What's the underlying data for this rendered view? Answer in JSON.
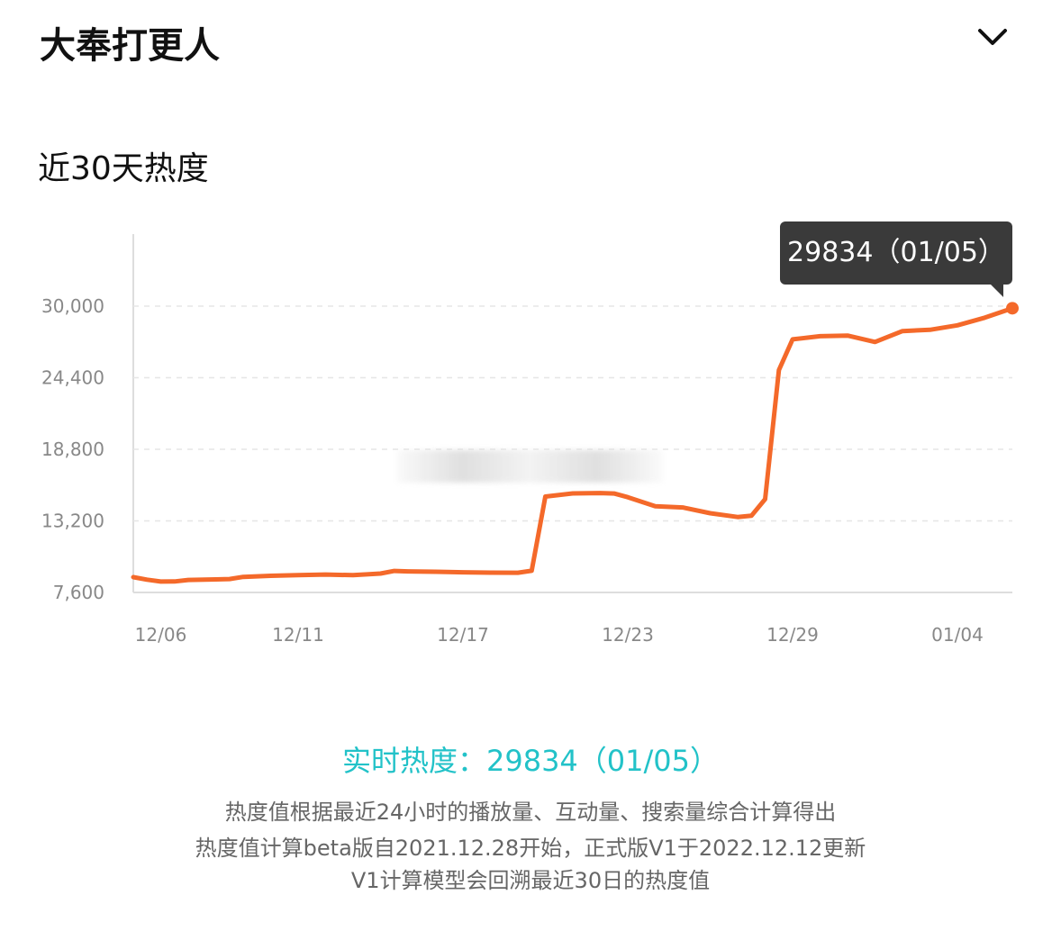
{
  "header": {
    "title": "大奉打更人",
    "toggle_icon": "chevron-down-icon"
  },
  "section": {
    "title": "近30天热度"
  },
  "tooltip": {
    "text": "29834（01/05）"
  },
  "realtime": {
    "text": "实时热度：29834（01/05）"
  },
  "notes": [
    "热度值根据最近24小时的播放量、互动量、搜索量综合计算得出",
    "热度值计算beta版自2021.12.28开始，正式版V1于2022.12.12更新",
    "V1计算模型会回溯最近30日的热度值"
  ],
  "colors": {
    "line": "#f4692a",
    "accent": "#22c2c8",
    "grid": "#e6e6e6",
    "axis": "#888888"
  },
  "chart_data": {
    "type": "line",
    "title": "",
    "xlabel": "",
    "ylabel": "",
    "x_tick_labels": [
      "12/06",
      "12/11",
      "12/17",
      "12/23",
      "12/29",
      "01/04"
    ],
    "y_tick_labels": [
      "7,600",
      "13,200",
      "18,800",
      "24,400",
      "30,000"
    ],
    "y_ticks": [
      7600,
      13200,
      18800,
      24400,
      30000
    ],
    "ylim": [
      7600,
      30000
    ],
    "grid": "horizontal dashed",
    "series": [
      {
        "values": [
          [
            0,
            8800
          ],
          [
            0.5,
            8600
          ],
          [
            1,
            8450
          ],
          [
            1.5,
            8460
          ],
          [
            2,
            8580
          ],
          [
            3,
            8620
          ],
          [
            3.5,
            8650
          ],
          [
            4,
            8820
          ],
          [
            5,
            8900
          ],
          [
            6,
            8950
          ],
          [
            7,
            9000
          ],
          [
            8,
            8950
          ],
          [
            9,
            9080
          ],
          [
            9.5,
            9280
          ],
          [
            10,
            9250
          ],
          [
            11,
            9220
          ],
          [
            12,
            9180
          ],
          [
            13,
            9150
          ],
          [
            14,
            9140
          ],
          [
            14.5,
            9300
          ],
          [
            15,
            15100
          ],
          [
            16,
            15350
          ],
          [
            17,
            15380
          ],
          [
            17.5,
            15340
          ],
          [
            18,
            15050
          ],
          [
            19,
            14350
          ],
          [
            20,
            14250
          ],
          [
            21,
            13800
          ],
          [
            22,
            13500
          ],
          [
            22.5,
            13600
          ],
          [
            23,
            14900
          ],
          [
            23.5,
            25000
          ],
          [
            24,
            27400
          ],
          [
            25,
            27650
          ],
          [
            26,
            27700
          ],
          [
            27,
            27200
          ],
          [
            28,
            28050
          ],
          [
            29,
            28150
          ],
          [
            30,
            28500
          ],
          [
            31,
            29100
          ],
          [
            32,
            29834
          ]
        ]
      }
    ],
    "last_point": {
      "x": "01/05",
      "y": 29834
    }
  }
}
